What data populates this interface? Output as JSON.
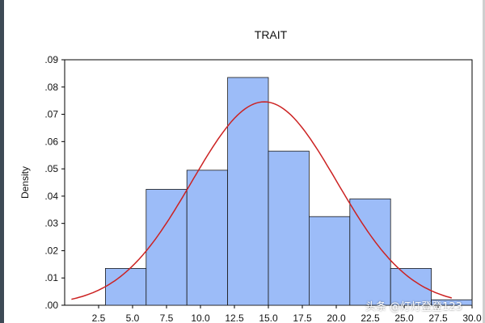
{
  "chart_data": {
    "type": "bar",
    "title": "TRAIT",
    "xlabel": "",
    "ylabel": "Density",
    "bin_edges": [
      3.0,
      6.0,
      9.0,
      12.0,
      15.0,
      18.0,
      21.0,
      24.0,
      27.0,
      30.0
    ],
    "values": [
      0.0135,
      0.0425,
      0.0495,
      0.0835,
      0.0565,
      0.0325,
      0.039,
      0.0135,
      0.002
    ],
    "xlim": [
      0.0,
      30.0
    ],
    "ylim": [
      0.0,
      0.09
    ],
    "x_ticks": [
      "2.5",
      "5.0",
      "7.5",
      "10.0",
      "12.5",
      "15.0",
      "17.5",
      "20.0",
      "22.5",
      "25.0",
      "27.5",
      "30.0"
    ],
    "y_ticks": [
      ".00",
      ".01",
      ".02",
      ".03",
      ".04",
      ".05",
      ".06",
      ".07",
      ".08",
      ".09"
    ],
    "normal_curve": {
      "mean": 14.7,
      "sd": 5.35
    },
    "colors": {
      "bar_fill": "#9cbcf8",
      "bar_stroke": "#1a1a1a",
      "curve": "#cc2222"
    },
    "grid": false
  },
  "watermark": "头条 @灯灯登登123"
}
